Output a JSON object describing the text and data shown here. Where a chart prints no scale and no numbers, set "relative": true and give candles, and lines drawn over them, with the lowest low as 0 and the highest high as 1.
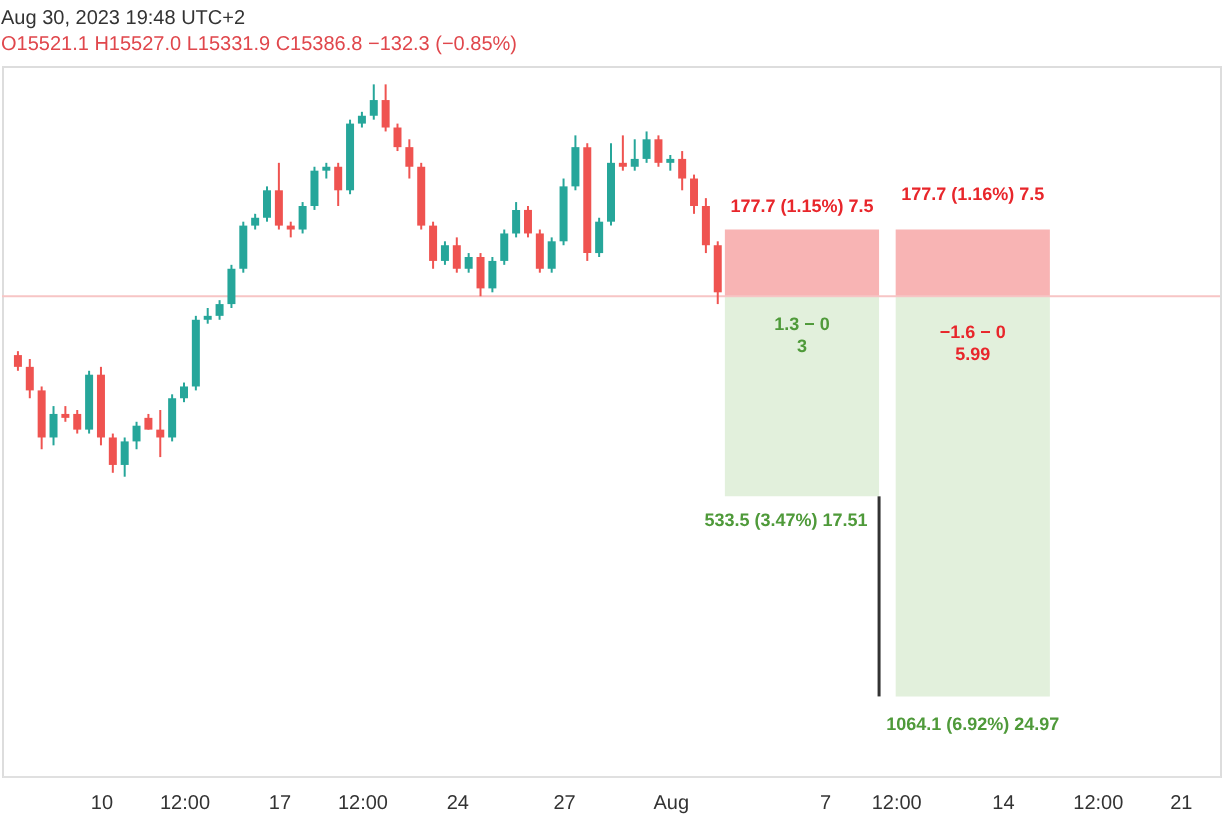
{
  "chart_data": {
    "type": "candlestick",
    "relative": true,
    "title": "Aug 30, 2023 19:48 UTC+2",
    "subtitle": "O15521.1 H15527.0 L15331.9 C15386.8 −132.3 (−0.85%)",
    "categories": [
      null,
      null,
      null,
      null,
      null,
      null,
      null,
      "10",
      null,
      null,
      null,
      null,
      null,
      null,
      "12:00",
      null,
      null,
      null,
      null,
      null,
      null,
      null,
      "17",
      null,
      null,
      null,
      null,
      null,
      null,
      "12:00",
      null,
      null,
      null,
      null,
      null,
      null,
      null,
      "24",
      null,
      null,
      null,
      null,
      null,
      null,
      null,
      null,
      "27",
      null,
      null,
      null,
      null,
      null,
      null,
      null,
      null,
      "Aug",
      null,
      null,
      null,
      null,
      null,
      null,
      null,
      null,
      null,
      null,
      null,
      null,
      "7",
      null,
      null,
      null,
      null,
      null,
      "12:00",
      null,
      null,
      null,
      null,
      null,
      null,
      null,
      null,
      "14",
      null,
      null,
      null,
      null,
      null,
      null,
      null,
      "12:00",
      null,
      null,
      null,
      null,
      null,
      null,
      "21",
      null,
      null
    ],
    "ohlc": [
      [
        0.31,
        0.32,
        0.27,
        0.28
      ],
      [
        0.28,
        0.3,
        0.2,
        0.22
      ],
      [
        0.22,
        0.23,
        0.07,
        0.1
      ],
      [
        0.1,
        0.18,
        0.08,
        0.16
      ],
      [
        0.16,
        0.18,
        0.14,
        0.15
      ],
      [
        0.16,
        0.17,
        0.11,
        0.12
      ],
      [
        0.12,
        0.27,
        0.11,
        0.26
      ],
      [
        0.26,
        0.28,
        0.08,
        0.1
      ],
      [
        0.1,
        0.11,
        0.01,
        0.03
      ],
      [
        0.03,
        0.1,
        0,
        0.09
      ],
      [
        0.09,
        0.14,
        0.07,
        0.13
      ],
      [
        0.15,
        0.16,
        0.12,
        0.12
      ],
      [
        0.12,
        0.17,
        0.05,
        0.1
      ],
      [
        0.1,
        0.21,
        0.09,
        0.2
      ],
      [
        0.2,
        0.24,
        0.19,
        0.23
      ],
      [
        0.23,
        0.41,
        0.22,
        0.4
      ],
      [
        0.4,
        0.43,
        0.39,
        0.41
      ],
      [
        0.41,
        0.45,
        0.4,
        0.44
      ],
      [
        0.44,
        0.54,
        0.43,
        0.53
      ],
      [
        0.53,
        0.65,
        0.52,
        0.64
      ],
      [
        0.64,
        0.67,
        0.63,
        0.66
      ],
      [
        0.66,
        0.74,
        0.65,
        0.73
      ],
      [
        0.73,
        0.8,
        0.63,
        0.64
      ],
      [
        0.64,
        0.65,
        0.61,
        0.63
      ],
      [
        0.63,
        0.7,
        0.62,
        0.69
      ],
      [
        0.69,
        0.79,
        0.68,
        0.78
      ],
      [
        0.78,
        0.8,
        0.76,
        0.79
      ],
      [
        0.79,
        0.8,
        0.69,
        0.73
      ],
      [
        0.73,
        0.91,
        0.72,
        0.9
      ],
      [
        0.9,
        0.93,
        0.89,
        0.92
      ],
      [
        0.92,
        1.0,
        0.91,
        0.96
      ],
      [
        0.96,
        1.0,
        0.88,
        0.89
      ],
      [
        0.89,
        0.9,
        0.83,
        0.84
      ],
      [
        0.84,
        0.86,
        0.76,
        0.79
      ],
      [
        0.79,
        0.8,
        0.63,
        0.64
      ],
      [
        0.64,
        0.65,
        0.53,
        0.55
      ],
      [
        0.55,
        0.6,
        0.54,
        0.59
      ],
      [
        0.59,
        0.61,
        0.52,
        0.53
      ],
      [
        0.53,
        0.57,
        0.52,
        0.56
      ],
      [
        0.56,
        0.57,
        0.46,
        0.48
      ],
      [
        0.48,
        0.56,
        0.47,
        0.55
      ],
      [
        0.55,
        0.63,
        0.54,
        0.62
      ],
      [
        0.62,
        0.7,
        0.61,
        0.68
      ],
      [
        0.68,
        0.69,
        0.61,
        0.62
      ],
      [
        0.62,
        0.63,
        0.52,
        0.53
      ],
      [
        0.53,
        0.61,
        0.52,
        0.6
      ],
      [
        0.6,
        0.76,
        0.59,
        0.74
      ],
      [
        0.74,
        0.87,
        0.73,
        0.84
      ],
      [
        0.84,
        0.85,
        0.55,
        0.57
      ],
      [
        0.57,
        0.66,
        0.56,
        0.65
      ],
      [
        0.65,
        0.85,
        0.64,
        0.8
      ],
      [
        0.8,
        0.87,
        0.78,
        0.79
      ],
      [
        0.79,
        0.86,
        0.78,
        0.81
      ],
      [
        0.81,
        0.88,
        0.8,
        0.86
      ],
      [
        0.86,
        0.87,
        0.79,
        0.8
      ],
      [
        0.8,
        0.82,
        0.78,
        0.81
      ],
      [
        0.81,
        0.83,
        0.73,
        0.76
      ],
      [
        0.76,
        0.77,
        0.67,
        0.69
      ],
      [
        0.69,
        0.71,
        0.57,
        0.59
      ],
      [
        0.59,
        0.6,
        0.44,
        0.47
      ],
      null,
      null,
      null,
      null,
      null,
      null,
      null,
      null,
      null,
      null,
      null,
      null,
      null,
      null,
      null,
      null,
      null,
      null,
      null,
      null,
      null,
      null,
      null,
      null,
      null,
      null,
      null,
      null,
      null,
      null,
      null,
      null,
      null,
      null,
      null,
      null,
      null,
      null,
      null,
      null,
      null
    ],
    "ref_lines": [
      {
        "axis": "y",
        "value": 0.46,
        "color": "#f7c5c5"
      }
    ],
    "bands": [
      {
        "axis": "y",
        "from": 0.46,
        "to": 0.63,
        "color": "#f8b4b4"
      },
      {
        "axis": "y",
        "from": -0.05,
        "to": 0.46,
        "color": "#e2f0dc"
      },
      {
        "axis": "y",
        "from": 0.46,
        "to": 0.63,
        "color": "#f8b4b4"
      },
      {
        "axis": "y",
        "from": -0.56,
        "to": 0.46,
        "color": "#e2f0dc"
      }
    ],
    "annotations": [
      {
        "text": "177.7 (1.15%) 7.5",
        "y": 0.63
      },
      {
        "text": "1.3 − 0\n3",
        "y": 0.46
      },
      {
        "text": "533.5 (3.47%) 17.51",
        "y": -0.05
      },
      {
        "text": "177.7 (1.16%) 7.5",
        "y": 0.63
      },
      {
        "text": "−1.6 − 0\n5.99",
        "y": 0.46
      },
      {
        "text": "1064.1 (6.92%) 24.97",
        "y": -0.56
      }
    ]
  }
}
